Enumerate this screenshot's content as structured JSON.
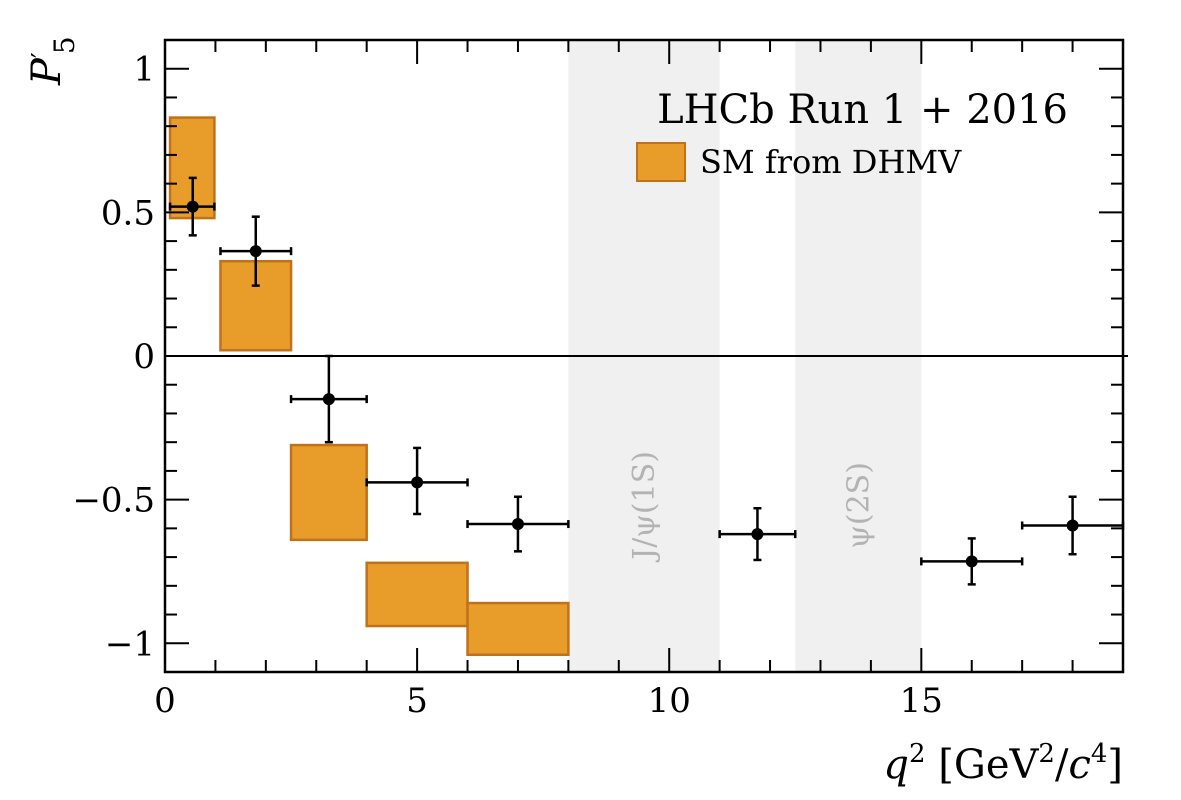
{
  "chart_data": {
    "type": "scatter",
    "title": "",
    "experiment_label": "LHCb Run 1 + 2016",
    "legend": {
      "entries": [
        {
          "label": "SM from DHMV",
          "color": "#E89D2B"
        }
      ],
      "placement": "top-right"
    },
    "xlabel": "q² [GeV²/c⁴]",
    "ylabel": "P′5",
    "xlim": [
      0,
      19
    ],
    "ylim": [
      -1.1,
      1.1
    ],
    "xticks": [
      0,
      5,
      10,
      15
    ],
    "yticks": [
      -1,
      -0.5,
      0,
      0.5,
      1
    ],
    "xtick_labels": [
      "0",
      "5",
      "10",
      "15"
    ],
    "ytick_labels": [
      "−1",
      "−0.5",
      "0",
      "0.5",
      "1"
    ],
    "excluded_regions": [
      {
        "label": "J/ψ(1S)",
        "x": [
          8,
          11
        ]
      },
      {
        "label": "ψ(2S)",
        "x": [
          12.5,
          15
        ]
      }
    ],
    "sm_prediction": [
      {
        "x": [
          0.1,
          0.98
        ],
        "y": [
          0.48,
          0.83
        ]
      },
      {
        "x": [
          1.1,
          2.5
        ],
        "y": [
          0.02,
          0.33
        ]
      },
      {
        "x": [
          2.5,
          4.0
        ],
        "y": [
          -0.64,
          -0.31
        ]
      },
      {
        "x": [
          4.0,
          6.0
        ],
        "y": [
          -0.94,
          -0.72
        ]
      },
      {
        "x": [
          6.0,
          8.0
        ],
        "y": [
          -1.04,
          -0.86
        ]
      }
    ],
    "data_points": [
      {
        "x": 0.55,
        "xerr": [
          0.45,
          0.43
        ],
        "y": 0.52,
        "yerr": [
          0.1,
          0.1
        ]
      },
      {
        "x": 1.8,
        "xerr": [
          0.7,
          0.7
        ],
        "y": 0.365,
        "yerr": [
          0.12,
          0.12
        ]
      },
      {
        "x": 3.25,
        "xerr": [
          0.75,
          0.75
        ],
        "y": -0.15,
        "yerr": [
          0.15,
          0.15
        ]
      },
      {
        "x": 5.0,
        "xerr": [
          1.0,
          1.0
        ],
        "y": -0.44,
        "yerr": [
          0.11,
          0.12
        ]
      },
      {
        "x": 7.0,
        "xerr": [
          1.0,
          1.0
        ],
        "y": -0.585,
        "yerr": [
          0.095,
          0.095
        ]
      },
      {
        "x": 11.75,
        "xerr": [
          0.75,
          0.75
        ],
        "y": -0.62,
        "yerr": [
          0.09,
          0.09
        ]
      },
      {
        "x": 16.0,
        "xerr": [
          1.0,
          1.0
        ],
        "y": -0.715,
        "yerr": [
          0.08,
          0.08
        ]
      },
      {
        "x": 18.0,
        "xerr": [
          1.0,
          1.0
        ],
        "y": -0.59,
        "yerr": [
          0.1,
          0.1
        ]
      }
    ],
    "zero_line": true,
    "grid": false
  }
}
